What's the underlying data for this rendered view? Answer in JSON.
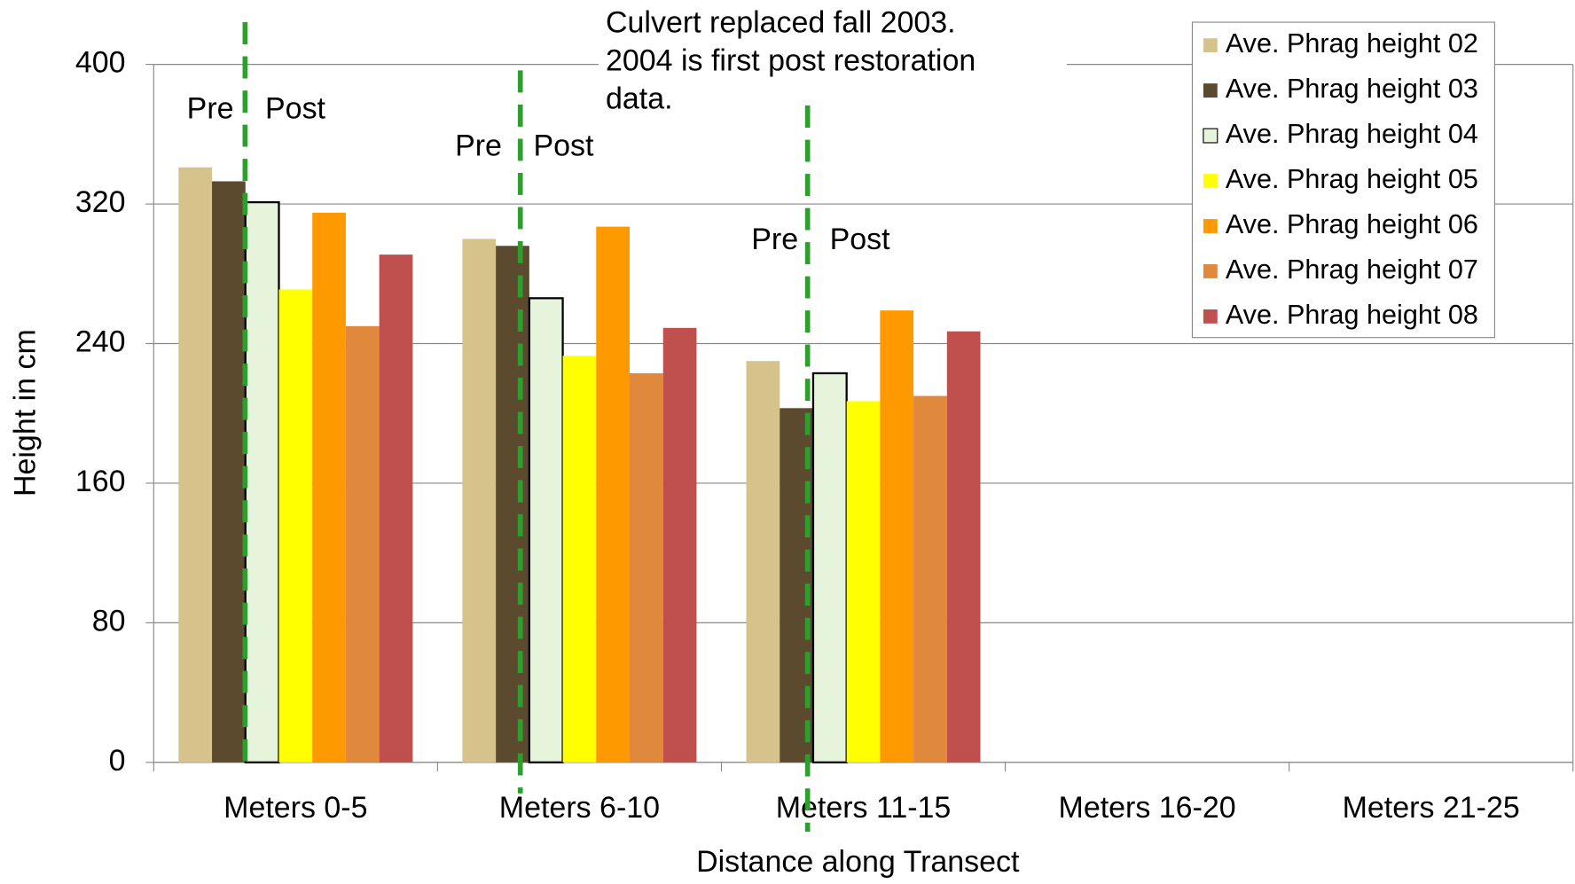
{
  "chart_data": {
    "type": "bar",
    "x_label": "Distance along Transect",
    "y_label": "Height in cm",
    "annotation": [
      "Culvert replaced fall 2003.",
      "2004 is first post restoration",
      "data."
    ],
    "markers": [
      {
        "pre": "Pre",
        "post": "Post"
      },
      {
        "pre": "Pre",
        "post": "Post"
      },
      {
        "pre": "Pre",
        "post": "Post"
      }
    ],
    "categories": [
      "Meters 0-5",
      "Meters 6-10",
      "Meters 11-15",
      "Meters 16-20",
      "Meters 21-25"
    ],
    "series": [
      {
        "name": "Ave. Phrag height 02",
        "color": "#d6c38c",
        "values": [
          341,
          300,
          230,
          null,
          null
        ]
      },
      {
        "name": "Ave. Phrag height 03",
        "color": "#5b4a2e",
        "values": [
          333,
          296,
          203,
          null,
          null
        ]
      },
      {
        "name": "Ave. Phrag height 04",
        "color": "#e6f4dc",
        "values": [
          321,
          266,
          223,
          null,
          null
        ]
      },
      {
        "name": "Ave. Phrag height 05",
        "color": "#ffff00",
        "values": [
          271,
          233,
          207,
          null,
          null
        ]
      },
      {
        "name": "Ave. Phrag height 06",
        "color": "#ff9900",
        "values": [
          315,
          307,
          259,
          null,
          null
        ]
      },
      {
        "name": "Ave. Phrag height 07",
        "color": "#e0883c",
        "values": [
          250,
          223,
          210,
          null,
          null
        ]
      },
      {
        "name": "Ave. Phrag height 08",
        "color": "#c0504d",
        "values": [
          291,
          249,
          247,
          null,
          null
        ]
      }
    ],
    "ylim": [
      0,
      400
    ],
    "yticks": [
      0,
      80,
      160,
      240,
      320,
      400
    ],
    "grid": true,
    "legend": "top-right"
  }
}
